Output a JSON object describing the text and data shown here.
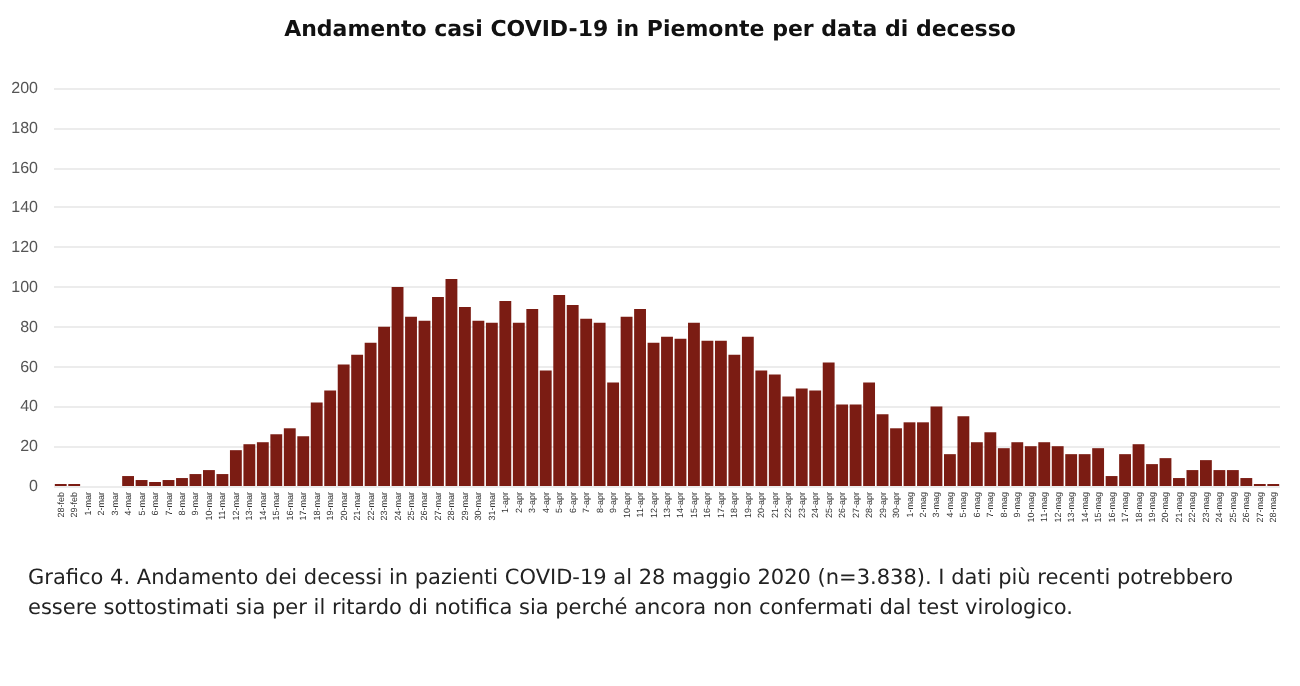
{
  "chart_data": {
    "type": "bar",
    "title": "Andamento casi COVID-19 in Piemonte per data di decesso",
    "categories": [
      "28-feb",
      "29-feb",
      "1-mar",
      "2-mar",
      "3-mar",
      "4-mar",
      "5-mar",
      "6-mar",
      "7-mar",
      "8-mar",
      "9-mar",
      "10-mar",
      "11-mar",
      "12-mar",
      "13-mar",
      "14-mar",
      "15-mar",
      "16-mar",
      "17-mar",
      "18-mar",
      "19-mar",
      "20-mar",
      "21-mar",
      "22-mar",
      "23-mar",
      "24-mar",
      "25-mar",
      "26-mar",
      "27-mar",
      "28-mar",
      "29-mar",
      "30-mar",
      "31-mar",
      "1-apr",
      "2-apr",
      "3-apr",
      "4-apr",
      "5-apr",
      "6-apr",
      "7-apr",
      "8-apr",
      "9-apr",
      "10-apr",
      "11-apr",
      "12-apr",
      "13-apr",
      "14-apr",
      "15-apr",
      "16-apr",
      "17-apr",
      "18-apr",
      "19-apr",
      "20-apr",
      "21-apr",
      "22-apr",
      "23-apr",
      "24-apr",
      "25-apr",
      "26-apr",
      "27-apr",
      "28-apr",
      "29-apr",
      "30-apr",
      "1-mag",
      "2-mag",
      "3-mag",
      "4-mag",
      "5-mag",
      "6-mag",
      "7-mag",
      "8-mag",
      "9-mag",
      "10-mag",
      "11-mag",
      "12-mag",
      "13-mag",
      "14-mag",
      "15-mag",
      "16-mag",
      "17-mag",
      "18-mag",
      "19-mag",
      "20-mag",
      "21-mag",
      "22-mag",
      "23-mag",
      "24-mag",
      "25-mag",
      "26-mag",
      "27-mag",
      "28-mag"
    ],
    "values": [
      1,
      1,
      0,
      0,
      0,
      5,
      3,
      2,
      3,
      4,
      6,
      8,
      6,
      18,
      21,
      22,
      26,
      29,
      25,
      42,
      48,
      61,
      66,
      72,
      80,
      100,
      85,
      83,
      95,
      104,
      90,
      83,
      82,
      93,
      82,
      89,
      58,
      96,
      91,
      84,
      82,
      52,
      85,
      89,
      72,
      75,
      74,
      82,
      73,
      73,
      66,
      75,
      58,
      56,
      45,
      49,
      48,
      62,
      41,
      41,
      52,
      36,
      29,
      32,
      32,
      40,
      16,
      35,
      22,
      27,
      19,
      22,
      20,
      22,
      20,
      16,
      16,
      19,
      5,
      16,
      21,
      11,
      14,
      4,
      8,
      13,
      8,
      8,
      4,
      1,
      1
    ],
    "color": "#7b1c13",
    "ylim": [
      0,
      200
    ],
    "yticks": [
      0,
      20,
      40,
      60,
      80,
      100,
      120,
      140,
      160,
      180,
      200
    ],
    "grid": "y",
    "annotations": [
      "Grafico 4. Andamento dei decessi in pazienti COVID-19 al 28 maggio 2020 (n=3.838). I dati più recenti potrebbero essere sottostimati sia per il ritardo di notifica sia perché ancora non confermati dal test virologico."
    ]
  }
}
